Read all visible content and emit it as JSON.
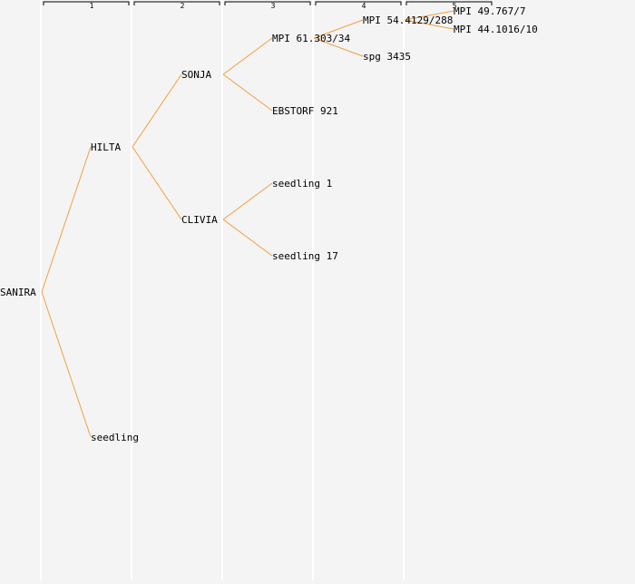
{
  "columns": [
    {
      "label": "1"
    },
    {
      "label": "2"
    },
    {
      "label": "3"
    },
    {
      "label": "4"
    },
    {
      "label": "5"
    }
  ],
  "tree": {
    "root": "SANIRA",
    "nodes": [
      {
        "id": "sanira",
        "label": "SANIRA",
        "generation": 0
      },
      {
        "id": "hilta",
        "label": "HILTA",
        "generation": 1,
        "parent": "sanira"
      },
      {
        "id": "seedling",
        "label": "seedling",
        "generation": 1,
        "parent": "sanira"
      },
      {
        "id": "sonja",
        "label": "SONJA",
        "generation": 2,
        "parent": "hilta"
      },
      {
        "id": "clivia",
        "label": "CLIVIA",
        "generation": 2,
        "parent": "hilta"
      },
      {
        "id": "mpi61",
        "label": "MPI 61.303/34",
        "generation": 3,
        "parent": "sonja"
      },
      {
        "id": "ebstorf",
        "label": "EBSTORF 921",
        "generation": 3,
        "parent": "sonja"
      },
      {
        "id": "seedling1",
        "label": "seedling 1",
        "generation": 3,
        "parent": "clivia"
      },
      {
        "id": "seedling17",
        "label": "seedling 17",
        "generation": 3,
        "parent": "clivia"
      },
      {
        "id": "mpi54",
        "label": "MPI 54.4129/288",
        "generation": 4,
        "parent": "mpi61"
      },
      {
        "id": "spg",
        "label": "spg 3435",
        "generation": 4,
        "parent": "mpi61"
      },
      {
        "id": "mpi49",
        "label": "MPI 49.767/7",
        "generation": 5,
        "parent": "mpi54"
      },
      {
        "id": "mpi44",
        "label": "MPI 44.1016/10",
        "generation": 5,
        "parent": "mpi54"
      }
    ]
  },
  "colors": {
    "background": "#f4f4f4",
    "edge": "#f0a040",
    "column_divider": "#ffffff",
    "text": "#000000",
    "bracket": "#000000"
  }
}
